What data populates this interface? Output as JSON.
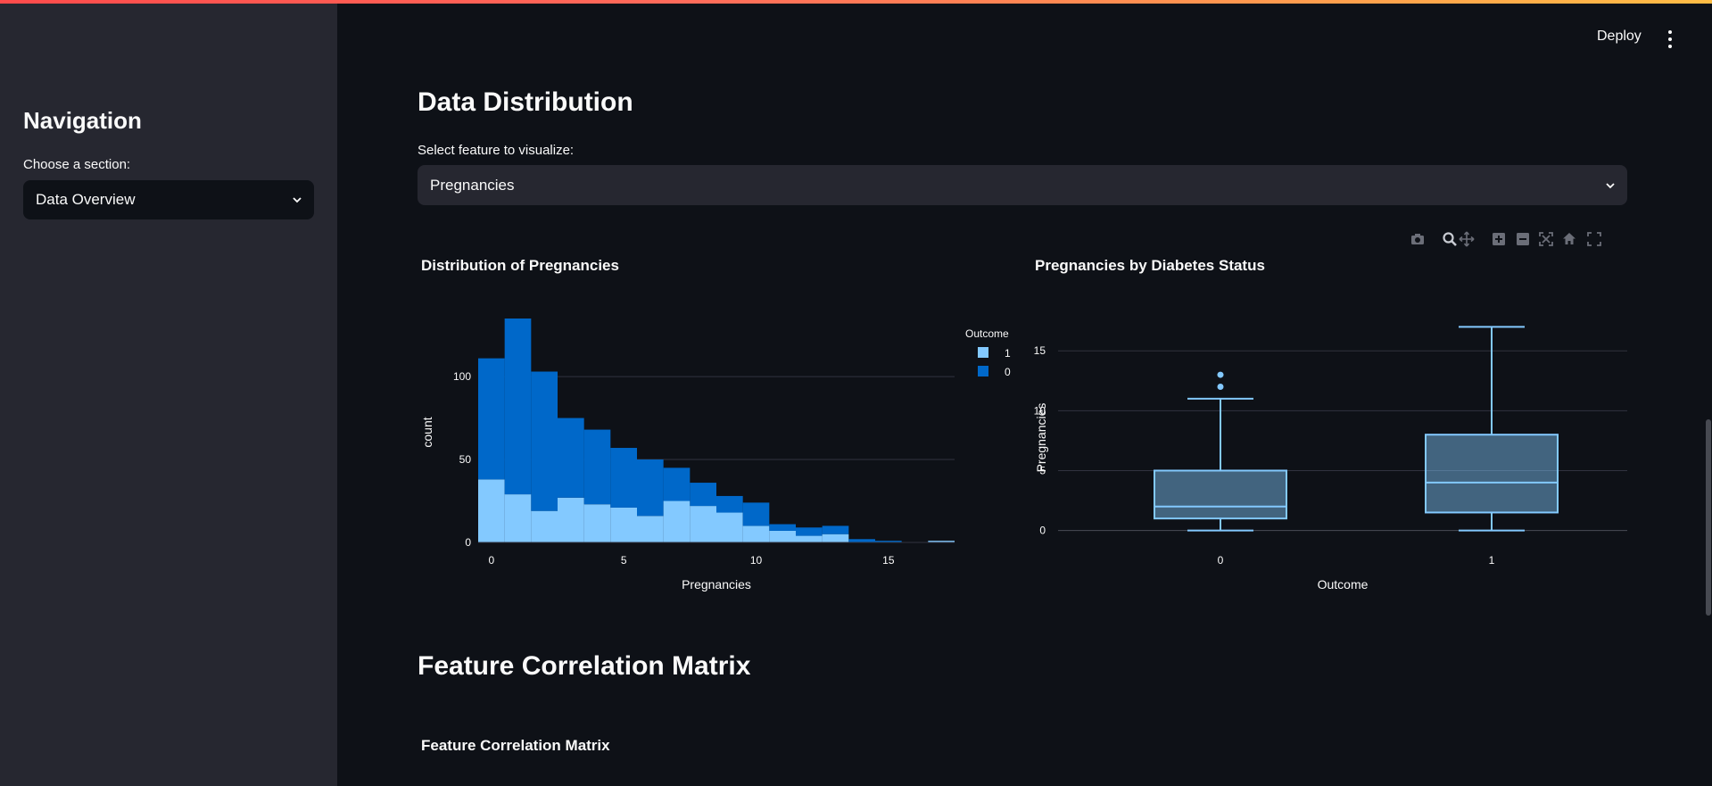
{
  "sidebar": {
    "title": "Navigation",
    "section_label": "Choose a section:",
    "section_value": "Data Overview"
  },
  "header": {
    "deploy_label": "Deploy"
  },
  "main": {
    "distribution_heading": "Data Distribution",
    "feature_label": "Select feature to visualize:",
    "feature_value": "Pregnancies",
    "correlation_heading": "Feature Correlation Matrix",
    "correlation_chart_title": "Feature Correlation Matrix"
  },
  "modebar_icons": [
    "camera-icon",
    "zoom-icon",
    "pan-icon",
    "zoom-in-icon",
    "zoom-out-icon",
    "autoscale-icon",
    "reset-axes-icon",
    "fullscreen-icon"
  ],
  "colors": {
    "background": "#0e1117",
    "sidebar": "#262730",
    "outcome_0": "#0068c9",
    "outcome_1": "#83c9ff",
    "box": "#83c9ff"
  },
  "chart_data": [
    {
      "type": "bar",
      "stacked": true,
      "title": "Distribution of Pregnancies",
      "xlabel": "Pregnancies",
      "ylabel": "count",
      "legend_title": "Outcome",
      "legend_position": "top-right",
      "x": [
        0,
        1,
        2,
        3,
        4,
        5,
        6,
        7,
        8,
        9,
        10,
        11,
        12,
        13,
        14,
        15,
        16,
        17
      ],
      "xlim": [
        -0.5,
        17.5
      ],
      "ylim": [
        0,
        135
      ],
      "x_ticks": [
        0,
        5,
        10,
        15
      ],
      "y_ticks": [
        0,
        50,
        100
      ],
      "series": [
        {
          "name": "1",
          "values": [
            38,
            29,
            19,
            27,
            23,
            21,
            16,
            25,
            22,
            18,
            10,
            7,
            4,
            5,
            0,
            0,
            0,
            1
          ]
        },
        {
          "name": "0",
          "values": [
            73,
            106,
            84,
            48,
            45,
            36,
            34,
            20,
            14,
            10,
            14,
            4,
            5,
            5,
            2,
            1,
            0,
            0
          ]
        }
      ]
    },
    {
      "type": "box",
      "title": "Pregnancies by Diabetes Status",
      "xlabel": "Outcome",
      "ylabel": "Pregnancies",
      "categories": [
        "0",
        "1"
      ],
      "ylim": [
        -1,
        17.7
      ],
      "y_ticks": [
        0,
        5,
        10,
        15
      ],
      "boxes": [
        {
          "min": 0,
          "q1": 1,
          "median": 2,
          "q3": 5,
          "max": 11,
          "outliers": [
            12,
            13
          ]
        },
        {
          "min": 0,
          "q1": 1.5,
          "median": 4,
          "q3": 8,
          "max": 17,
          "outliers": []
        }
      ]
    }
  ]
}
